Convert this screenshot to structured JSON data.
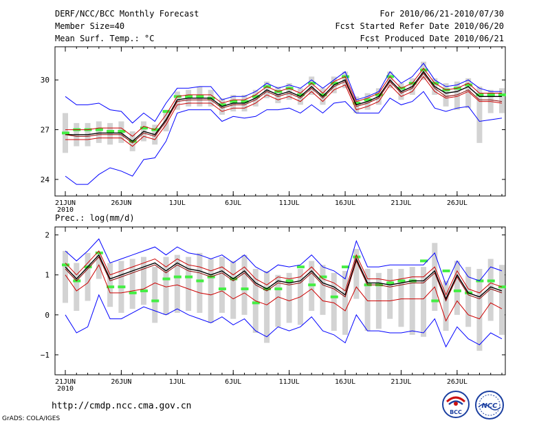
{
  "header": {
    "title": "DERF/NCC/BCC Monthly Forecast",
    "member_size": "Member Size=40",
    "variable": "Mean Surf. Temp.: °C",
    "period": "For 2010/06/21-2010/07/30",
    "refer_date": "Fcst Started Refer Date 2010/06/20",
    "produced_date": "Fcst Produced Date 2010/06/21"
  },
  "footer": {
    "url": "http://cmdp.ncc.cma.gov.cn",
    "grads": "GrADS: COLA/IGES",
    "logo_bcc": "BCC",
    "logo_ncc": "NCC"
  },
  "colors": {
    "mean": "#000000",
    "median": "#8b0000",
    "spread": "#0000ff",
    "quartile": "#cc0000",
    "box": "#d3d3d3",
    "bar": "#44ee44"
  },
  "chart_data": [
    {
      "type": "line",
      "title": "Mean Surf. Temp.: °C",
      "x_ticks": [
        "21JUN",
        "26JUN",
        "1JUL",
        "6JUL",
        "11JUL",
        "16JUL",
        "21JUL",
        "26JUL"
      ],
      "x_year": "2010",
      "ylim": [
        23,
        32
      ],
      "y_ticks": [
        24,
        27,
        30
      ],
      "y_tick_labels": [
        "24",
        "27",
        "30"
      ],
      "series": [
        {
          "name": "ensemble mean",
          "color": "#000000",
          "values": [
            26.7,
            26.7,
            26.7,
            26.8,
            26.8,
            26.8,
            26.3,
            26.9,
            26.7,
            27.6,
            28.8,
            28.9,
            28.9,
            28.9,
            28.4,
            28.6,
            28.6,
            28.9,
            29.4,
            29.1,
            29.3,
            29.0,
            29.6,
            29.0,
            29.7,
            30.0,
            28.5,
            28.7,
            29.0,
            30.0,
            29.3,
            29.6,
            30.5,
            29.6,
            29.2,
            29.3,
            29.6,
            29.0,
            29.0,
            29.0
          ]
        },
        {
          "name": "ensemble median",
          "color": "#8b0000",
          "values": [
            26.7,
            26.6,
            26.6,
            26.7,
            26.7,
            26.7,
            26.2,
            26.8,
            26.6,
            27.5,
            28.7,
            28.8,
            28.8,
            28.8,
            28.3,
            28.5,
            28.5,
            28.8,
            29.3,
            29.0,
            29.2,
            28.9,
            29.5,
            28.9,
            29.6,
            29.9,
            28.4,
            28.6,
            28.9,
            29.9,
            29.2,
            29.5,
            30.4,
            29.5,
            29.0,
            29.1,
            29.4,
            28.8,
            28.8,
            28.7
          ]
        },
        {
          "name": "upper quartile",
          "color": "#cc0000",
          "values": [
            27.0,
            27.0,
            27.0,
            27.1,
            27.1,
            27.1,
            26.6,
            27.2,
            27.0,
            27.9,
            29.0,
            29.1,
            29.1,
            29.1,
            28.6,
            28.8,
            28.8,
            29.1,
            29.6,
            29.3,
            29.5,
            29.2,
            29.8,
            29.2,
            29.9,
            30.2,
            28.7,
            28.9,
            29.2,
            30.2,
            29.5,
            29.8,
            30.7,
            29.8,
            29.4,
            29.5,
            29.8,
            29.2,
            29.2,
            29.2
          ]
        },
        {
          "name": "lower quartile",
          "color": "#cc0000",
          "values": [
            26.4,
            26.4,
            26.4,
            26.5,
            26.5,
            26.5,
            26.0,
            26.6,
            26.4,
            27.3,
            28.5,
            28.6,
            28.6,
            28.6,
            28.1,
            28.3,
            28.3,
            28.6,
            29.1,
            28.8,
            29.0,
            28.7,
            29.3,
            28.7,
            29.4,
            29.7,
            28.2,
            28.4,
            28.7,
            29.7,
            29.0,
            29.3,
            30.2,
            29.3,
            28.9,
            29.0,
            29.3,
            28.7,
            28.7,
            28.6
          ]
        },
        {
          "name": "ensemble max",
          "color": "#0000ff",
          "values": [
            29.0,
            28.5,
            28.5,
            28.6,
            28.2,
            28.1,
            27.4,
            28.0,
            27.5,
            28.6,
            29.5,
            29.5,
            29.6,
            29.6,
            28.8,
            29.0,
            29.0,
            29.3,
            29.8,
            29.5,
            29.7,
            29.5,
            30.0,
            29.5,
            30.0,
            30.5,
            28.8,
            29.0,
            29.3,
            30.5,
            29.8,
            30.2,
            31.0,
            30.0,
            29.6,
            29.7,
            30.0,
            29.5,
            29.3,
            29.3
          ]
        },
        {
          "name": "ensemble min",
          "color": "#0000ff",
          "values": [
            24.2,
            23.7,
            23.7,
            24.3,
            24.7,
            24.5,
            24.2,
            25.2,
            25.3,
            26.3,
            28.0,
            28.2,
            28.2,
            28.2,
            27.5,
            27.8,
            27.7,
            27.8,
            28.2,
            28.2,
            28.3,
            28.0,
            28.5,
            28.0,
            28.6,
            28.7,
            28.0,
            28.0,
            28.0,
            28.9,
            28.5,
            28.7,
            29.3,
            28.3,
            28.1,
            28.3,
            28.4,
            27.5,
            27.6,
            27.7
          ]
        }
      ],
      "box_low": [
        25.6,
        26.0,
        26.0,
        26.2,
        26.1,
        26.2,
        25.7,
        26.3,
        26.1,
        26.9,
        28.2,
        28.4,
        28.4,
        28.4,
        27.9,
        28.1,
        28.1,
        28.4,
        28.9,
        28.6,
        28.8,
        28.5,
        29.1,
        28.5,
        29.2,
        29.5,
        28.0,
        28.2,
        28.5,
        29.5,
        28.8,
        29.1,
        30.0,
        29.1,
        28.4,
        28.2,
        28.3,
        26.2,
        28.0,
        28.0
      ],
      "box_high": [
        28.0,
        27.4,
        27.4,
        27.5,
        27.4,
        27.5,
        26.9,
        27.5,
        27.3,
        28.2,
        29.3,
        29.4,
        29.6,
        29.4,
        28.9,
        29.1,
        29.1,
        29.4,
        29.9,
        29.6,
        29.8,
        29.5,
        30.2,
        29.5,
        30.2,
        30.5,
        29.0,
        29.2,
        29.5,
        30.5,
        29.8,
        30.1,
        31.1,
        30.1,
        29.8,
        29.9,
        30.1,
        29.6,
        29.4,
        29.5
      ],
      "bars": [
        26.8,
        27.0,
        27.0,
        27.0,
        26.9,
        26.9,
        26.3,
        27.1,
        27.0,
        28.1,
        29.0,
        29.0,
        29.0,
        28.9,
        28.5,
        28.7,
        28.7,
        29.0,
        29.6,
        29.3,
        29.5,
        29.1,
        29.8,
        29.1,
        29.8,
        30.2,
        28.6,
        28.8,
        29.1,
        30.2,
        29.5,
        29.8,
        30.6,
        29.8,
        29.4,
        29.5,
        29.7,
        29.1,
        29.1,
        29.1
      ]
    },
    {
      "type": "line",
      "title": "Prec.: log(mm/d)",
      "x_ticks": [
        "21JUN",
        "26JUN",
        "1JUL",
        "6JUL",
        "11JUL",
        "16JUL",
        "21JUL",
        "26JUL"
      ],
      "x_year": "2010",
      "ylim": [
        -1.5,
        2.2
      ],
      "y_ticks": [
        -1,
        0,
        1,
        2
      ],
      "y_tick_labels": [
        "−1",
        "0",
        "1",
        "2"
      ],
      "series": [
        {
          "name": "ensemble mean",
          "color": "#000000",
          "values": [
            1.2,
            0.9,
            1.2,
            1.5,
            0.9,
            1.0,
            1.1,
            1.2,
            1.3,
            1.1,
            1.3,
            1.15,
            1.1,
            1.0,
            1.1,
            0.9,
            1.1,
            0.8,
            0.65,
            0.85,
            0.8,
            0.85,
            1.1,
            0.8,
            0.7,
            0.5,
            1.4,
            0.8,
            0.8,
            0.75,
            0.8,
            0.85,
            0.85,
            1.1,
            0.4,
            1.0,
            0.55,
            0.45,
            0.7,
            0.6
          ]
        },
        {
          "name": "ensemble median",
          "color": "#8b0000",
          "values": [
            1.15,
            0.85,
            1.15,
            1.45,
            0.85,
            0.95,
            1.05,
            1.15,
            1.25,
            1.05,
            1.25,
            1.1,
            1.05,
            0.95,
            1.05,
            0.85,
            1.05,
            0.75,
            0.6,
            0.8,
            0.75,
            0.8,
            1.05,
            0.75,
            0.65,
            0.45,
            1.35,
            0.75,
            0.75,
            0.7,
            0.75,
            0.8,
            0.8,
            1.05,
            0.35,
            0.95,
            0.5,
            0.4,
            0.65,
            0.55
          ]
        },
        {
          "name": "upper quartile",
          "color": "#cc0000",
          "values": [
            1.3,
            1.0,
            1.3,
            1.6,
            1.0,
            1.1,
            1.2,
            1.3,
            1.4,
            1.2,
            1.4,
            1.25,
            1.2,
            1.1,
            1.2,
            1.0,
            1.2,
            0.9,
            0.75,
            0.95,
            0.9,
            0.95,
            1.2,
            0.9,
            0.8,
            0.6,
            1.5,
            0.9,
            0.9,
            0.85,
            0.9,
            0.95,
            0.95,
            1.2,
            0.5,
            1.1,
            0.65,
            0.55,
            0.8,
            0.7
          ]
        },
        {
          "name": "lower quartile",
          "color": "#cc0000",
          "values": [
            1.0,
            0.6,
            0.8,
            1.25,
            0.55,
            0.55,
            0.6,
            0.65,
            0.8,
            0.7,
            0.75,
            0.65,
            0.55,
            0.5,
            0.6,
            0.4,
            0.55,
            0.35,
            0.25,
            0.45,
            0.35,
            0.45,
            0.65,
            0.35,
            0.3,
            0.1,
            0.7,
            0.35,
            0.35,
            0.35,
            0.4,
            0.4,
            0.4,
            0.7,
            -0.15,
            0.35,
            0.0,
            -0.1,
            0.3,
            0.15
          ]
        },
        {
          "name": "ensemble max",
          "color": "#0000ff",
          "values": [
            1.6,
            1.35,
            1.6,
            1.9,
            1.3,
            1.4,
            1.5,
            1.6,
            1.7,
            1.5,
            1.7,
            1.55,
            1.5,
            1.4,
            1.5,
            1.3,
            1.5,
            1.2,
            1.05,
            1.25,
            1.2,
            1.25,
            1.5,
            1.2,
            1.1,
            0.9,
            1.85,
            1.2,
            1.2,
            1.25,
            1.25,
            1.25,
            1.25,
            1.55,
            0.75,
            1.35,
            0.95,
            0.85,
            1.2,
            1.1
          ]
        },
        {
          "name": "ensemble min",
          "color": "#0000ff",
          "values": [
            0.0,
            -0.45,
            -0.3,
            0.5,
            -0.1,
            -0.1,
            0.05,
            0.2,
            0.1,
            0.0,
            0.15,
            0.0,
            -0.1,
            -0.2,
            -0.05,
            -0.25,
            -0.1,
            -0.4,
            -0.55,
            -0.3,
            -0.4,
            -0.3,
            -0.05,
            -0.4,
            -0.5,
            -0.7,
            0.0,
            -0.4,
            -0.4,
            -0.45,
            -0.45,
            -0.4,
            -0.45,
            -0.1,
            -0.8,
            -0.3,
            -0.6,
            -0.75,
            -0.45,
            -0.6
          ]
        },
        {
          "name": "ensemble mean (green)",
          "color": "#000000",
          "values": []
        }
      ],
      "box_low": [
        0.3,
        0.1,
        0.35,
        0.9,
        0.2,
        0.05,
        0.15,
        0.25,
        -0.2,
        0.0,
        0.05,
        0.1,
        0.05,
        -0.2,
        0.05,
        -0.1,
        0.0,
        -0.45,
        -0.7,
        -0.3,
        -0.2,
        -0.25,
        0.1,
        0.0,
        -0.4,
        -0.5,
        0.4,
        -0.4,
        -0.35,
        -0.1,
        -0.3,
        -0.5,
        -0.55,
        0.1,
        -0.4,
        0.0,
        -0.3,
        -0.9,
        -0.15,
        -0.5
      ],
      "box_high": [
        1.6,
        1.3,
        1.55,
        1.5,
        1.3,
        1.35,
        1.4,
        1.45,
        1.2,
        1.45,
        1.5,
        1.45,
        1.55,
        1.4,
        1.45,
        1.35,
        1.5,
        1.15,
        1.1,
        1.0,
        1.05,
        1.15,
        1.35,
        1.25,
        1.05,
        1.1,
        1.65,
        1.15,
        1.05,
        1.15,
        1.15,
        1.2,
        1.2,
        1.8,
        0.85,
        1.35,
        1.2,
        1.15,
        1.4,
        1.25
      ],
      "bars": [
        1.25,
        0.85,
        1.2,
        1.55,
        0.7,
        0.7,
        0.55,
        0.6,
        0.35,
        0.9,
        0.95,
        0.95,
        0.85,
        0.95,
        0.65,
        0.9,
        0.65,
        0.3,
        0.65,
        0.65,
        0.85,
        1.2,
        0.75,
        0.95,
        0.45,
        1.2,
        1.45,
        0.75,
        0.75,
        0.8,
        0.85,
        0.85,
        1.35,
        0.35,
        1.1,
        0.6,
        0.55,
        0.85,
        0.85,
        0.7
      ]
    }
  ]
}
